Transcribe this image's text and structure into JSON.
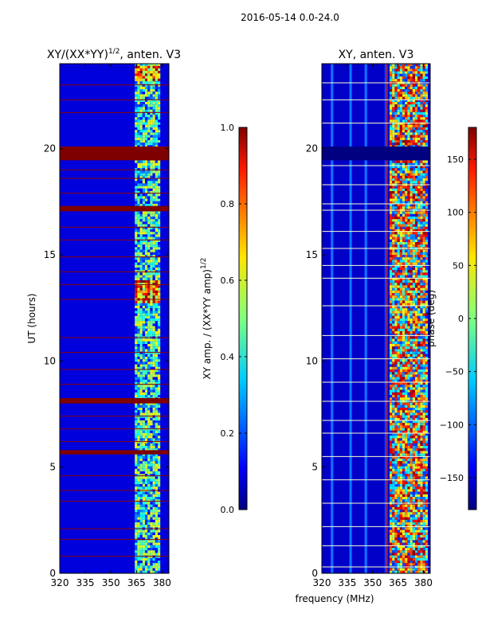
{
  "suptitle": "2016-05-14 0.0-24.0",
  "xlabel_shared": "frequency (MHz)",
  "chart_data": [
    {
      "type": "heatmap",
      "title_main": "XY/(XX*YY)",
      "title_sup": "1/2",
      "title_tail": ", anten. V3",
      "ylabel": "UT (hours)",
      "xlabel": "",
      "xlim": [
        320,
        384
      ],
      "ylim": [
        0,
        24
      ],
      "xticks": [
        320,
        335,
        350,
        365,
        380
      ],
      "yticks": [
        0,
        5,
        10,
        15,
        20
      ],
      "band_ranges": [
        [
          364,
          378
        ]
      ],
      "vertical_stripes": [],
      "flagged_rows_hours": [
        [
          19.45,
          20.1
        ],
        [
          17.05,
          17.3
        ],
        [
          8.0,
          8.25
        ],
        [
          5.6,
          5.8
        ]
      ],
      "thin_lines_hours": [
        0.8,
        1.6,
        2.1,
        3.4,
        3.9,
        4.6,
        6.2,
        6.8,
        7.4,
        8.9,
        9.6,
        10.4,
        11.1,
        12.9,
        13.6,
        14.2,
        14.9,
        15.7,
        16.3,
        17.9,
        18.6,
        19.0,
        21.7,
        22.3,
        23.0
      ],
      "hot_rows_hours": [
        [
          12.8,
          13.8
        ],
        [
          23.2,
          23.9
        ]
      ],
      "colorbar": {
        "label_main": "XY amp. / (XX*YY amp)",
        "label_sup": "1/2",
        "vmin": 0.0,
        "vmax": 1.0,
        "ticks": [
          "0.0",
          "0.2",
          "0.4",
          "0.6",
          "0.8",
          "1.0"
        ],
        "tick_values": [
          0.0,
          0.2,
          0.4,
          0.6,
          0.8,
          1.0
        ]
      }
    },
    {
      "type": "heatmap",
      "title_main": "XY, anten. V3",
      "ylabel": "",
      "xlabel": "frequency (MHz)",
      "xlim": [
        320,
        384
      ],
      "ylim": [
        0,
        24
      ],
      "xticks": [
        320,
        335,
        350,
        365,
        380
      ],
      "yticks": [
        0,
        5,
        10,
        15,
        20
      ],
      "band_ranges": [
        [
          360,
          382
        ]
      ],
      "vertical_stripes": [
        326,
        337,
        346,
        358
      ],
      "flagged_rows_hours": [
        [
          19.45,
          20.1
        ]
      ],
      "thin_lines_hours": [
        0.3,
        1.3,
        2.2,
        3.3,
        4.4,
        5.5,
        6.6,
        7.2,
        8.1,
        9.0,
        10.1,
        11.2,
        12.6,
        13.9,
        14.5,
        15.3,
        16.1,
        17.1,
        17.4,
        18.3,
        19.2,
        21.2,
        22.3,
        23.1
      ],
      "colorbar": {
        "label_main": "phase (deg)",
        "vmin": -180,
        "vmax": 180,
        "ticks": [
          "−150",
          "−100",
          "−50",
          "0",
          "50",
          "100",
          "150"
        ],
        "tick_values": [
          -150,
          -100,
          -50,
          0,
          50,
          100,
          150
        ]
      }
    }
  ]
}
